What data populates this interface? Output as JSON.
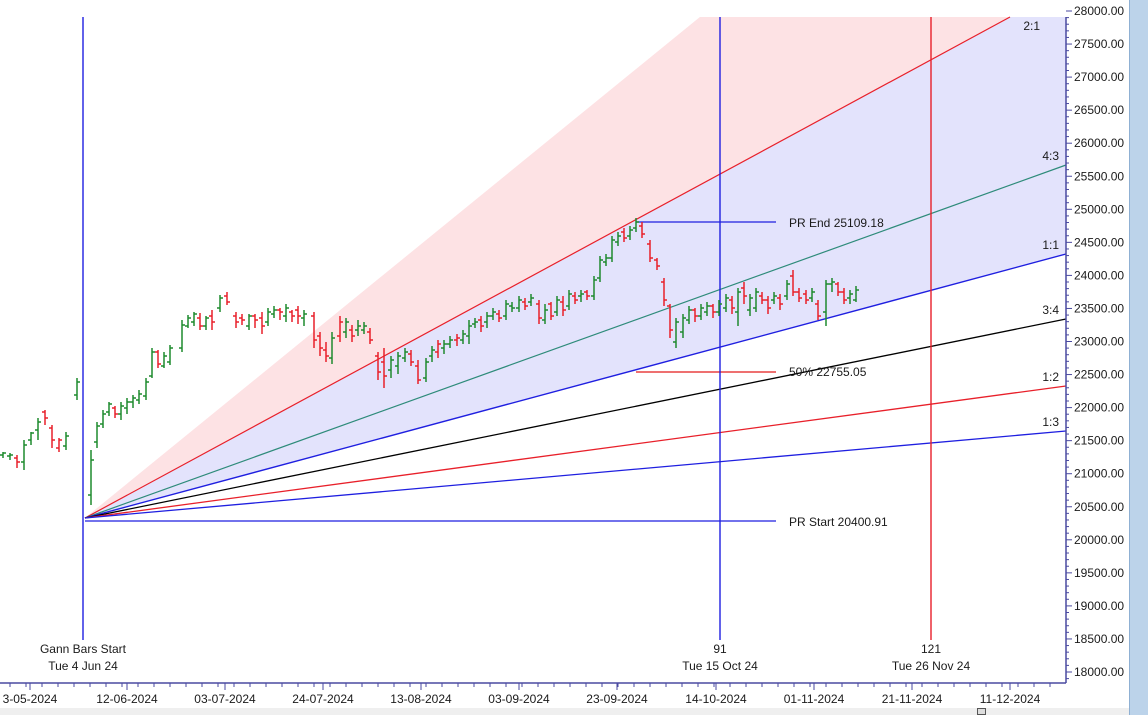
{
  "chart_data": {
    "type": "bar",
    "subtype": "ohlc-with-gann-fan",
    "title": "",
    "y_axis": {
      "position": "right",
      "range": [
        18000,
        28000
      ],
      "ticks": [
        "28000.00",
        "27500.00",
        "27000.00",
        "26500.00",
        "26000.00",
        "25500.00",
        "25000.00",
        "24500.00",
        "24000.00",
        "23500.00",
        "23000.00",
        "22500.00",
        "22000.00",
        "21500.00",
        "21000.00",
        "20500.00",
        "20000.00",
        "19500.00",
        "19000.00",
        "18500.00",
        "18000.00"
      ]
    },
    "x_axis": {
      "ticks": [
        "3-05-2024",
        "12-06-2024",
        "03-07-2024",
        "24-07-2024",
        "13-08-2024",
        "03-09-2024",
        "23-09-2024",
        "14-10-2024",
        "01-11-2024",
        "21-11-2024",
        "11-12-2024"
      ]
    },
    "gann_fan": {
      "origin": {
        "date": "Tue 4 Jun 24",
        "price": 20400.91
      },
      "lines": [
        {
          "label": "2:1",
          "color": "#e8202a"
        },
        {
          "label": "4:3",
          "color": "#2e8b7a"
        },
        {
          "label": "1:1",
          "color": "#1f1fe0"
        },
        {
          "label": "3:4",
          "color": "#000000"
        },
        {
          "label": "1:2",
          "color": "#e8202a"
        },
        {
          "label": "1:3",
          "color": "#1f1fe0"
        }
      ]
    },
    "levels": [
      {
        "label": "PR End 25109.18",
        "value": 25109.18,
        "color": "#1f1fe0"
      },
      {
        "label": "50% 22755.05",
        "value": 22755.05,
        "color": "#e84040"
      },
      {
        "label": "PR Start 20400.91",
        "value": 20400.91,
        "color": "#1f1fe0"
      }
    ],
    "vertical_markers": [
      {
        "top": "Gann Bars Start",
        "bottom": "Tue 4 Jun 24",
        "color": "#1f1fe0"
      },
      {
        "top": "91",
        "bottom": "Tue 15 Oct 24",
        "color": "#1f1fe0"
      },
      {
        "top": "121",
        "bottom": "Tue 26 Nov 24",
        "color": "#e8202a"
      }
    ],
    "bars_approx": {
      "note": "OHLC daily bars, green=up, red=down; approximate closes",
      "closes": [
        21500,
        21300,
        21700,
        22000,
        21600,
        21800,
        23500,
        21500,
        22200,
        22400,
        22300,
        22700,
        23300,
        23600,
        24000,
        24200,
        23700,
        23900,
        23800,
        23700,
        23800,
        23600,
        23200,
        23400,
        23300,
        22600,
        22700,
        22900,
        22800,
        23000,
        23400,
        23700,
        24000,
        24100,
        23700,
        23800,
        24200,
        24400,
        25000,
        25100,
        24900,
        24200,
        23700,
        23400,
        23500,
        23600,
        23800,
        24000,
        24100,
        24300,
        23700,
        24000,
        24200,
        24000
      ]
    }
  },
  "annotations": {
    "gann_start_top": "Gann Bars Start",
    "gann_start_bottom": "Tue 4 Jun 24",
    "m91_top": "91",
    "m91_bottom": "Tue 15 Oct 24",
    "m121_top": "121",
    "m121_bottom": "Tue 26 Nov 24",
    "pr_end": "PR End 25109.18",
    "fifty": "50% 22755.05",
    "pr_start": "PR Start 20400.91",
    "r21": "2:1",
    "r43": "4:3",
    "r11": "1:1",
    "r34": "3:4",
    "r12": "1:2",
    "r13": "1:3"
  },
  "colors": {
    "fan_upper_fill": "#fde2e4",
    "fan_lower_fill": "#e3e3fc",
    "up_bar": "#1e8a2e",
    "down_bar": "#e8202a",
    "axis": "#4a4aa0"
  }
}
